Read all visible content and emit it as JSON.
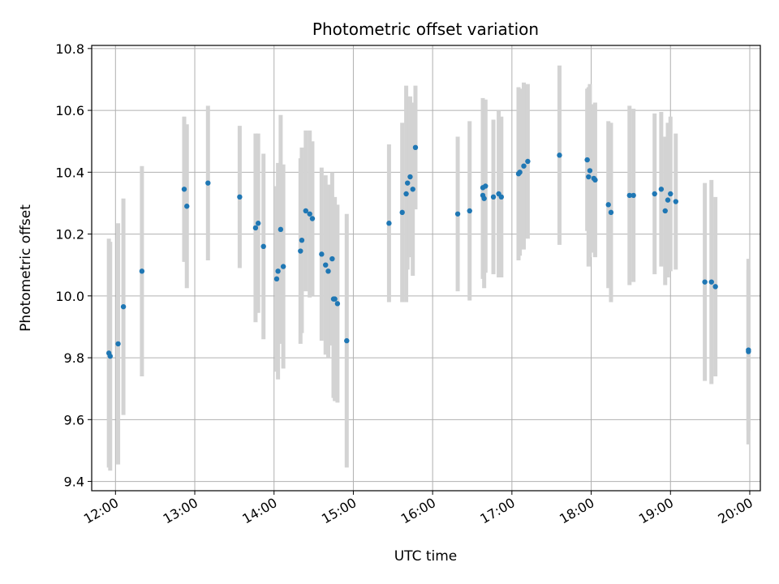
{
  "chart_data": {
    "type": "scatter",
    "title": "Photometric offset variation",
    "xlabel": "UTC time",
    "ylabel": "Photometric offset",
    "xlim": [
      "11:42",
      "20:08"
    ],
    "ylim": [
      9.37,
      10.81
    ],
    "x_ticks": [
      "12:00",
      "13:00",
      "14:00",
      "15:00",
      "16:00",
      "17:00",
      "18:00",
      "19:00",
      "20:00"
    ],
    "y_ticks": [
      9.4,
      9.6,
      9.8,
      10.0,
      10.2,
      10.4,
      10.6,
      10.8
    ],
    "y_tick_labels": [
      "9.4",
      "9.6",
      "9.8",
      "10.0",
      "10.2",
      "10.4",
      "10.6",
      "10.8"
    ],
    "grid": true,
    "colors": {
      "point": "#1f77b4",
      "error_bar": "#d3d3d3",
      "grid": "#b0b0b0"
    },
    "series": [
      {
        "x": [
          "11:55",
          "11:56",
          "12:02",
          "12:06",
          "12:20",
          "12:52",
          "12:54",
          "13:10",
          "13:34",
          "13:46",
          "13:48",
          "13:52",
          "14:02",
          "14:03",
          "14:05",
          "14:07",
          "14:20",
          "14:21",
          "14:24",
          "14:27",
          "14:29",
          "14:36",
          "14:39",
          "14:41",
          "14:44",
          "14:45",
          "14:46",
          "14:48",
          "14:55",
          "15:27",
          "15:37",
          "15:40",
          "15:41",
          "15:43",
          "15:45",
          "15:47",
          "16:19",
          "16:28",
          "16:38",
          "16:38",
          "16:39",
          "16:40",
          "16:46",
          "16:50",
          "16:52",
          "17:05",
          "17:06",
          "17:09",
          "17:12",
          "17:36",
          "17:57",
          "17:58",
          "17:59",
          "18:02",
          "18:03",
          "18:13",
          "18:15",
          "18:29",
          "18:32",
          "18:48",
          "18:53",
          "18:56",
          "18:58",
          "19:00",
          "19:04",
          "19:26",
          "19:31",
          "19:34",
          "19:59",
          "19:59"
        ],
        "y": [
          9.815,
          9.805,
          9.845,
          9.965,
          10.08,
          10.345,
          10.29,
          10.365,
          10.32,
          10.22,
          10.235,
          10.16,
          10.055,
          10.08,
          10.215,
          10.095,
          10.145,
          10.18,
          10.275,
          10.265,
          10.25,
          10.135,
          10.1,
          10.08,
          10.12,
          9.99,
          9.99,
          9.975,
          9.855,
          10.235,
          10.27,
          10.33,
          10.365,
          10.385,
          10.345,
          10.48,
          10.265,
          10.275,
          10.325,
          10.35,
          10.315,
          10.355,
          10.32,
          10.33,
          10.32,
          10.395,
          10.4,
          10.42,
          10.435,
          10.455,
          10.44,
          10.385,
          10.405,
          10.38,
          10.375,
          10.295,
          10.27,
          10.325,
          10.325,
          10.33,
          10.345,
          10.275,
          10.31,
          10.33,
          10.305,
          10.045,
          10.045,
          10.03,
          9.825,
          9.82
        ],
        "error": [
          0.37,
          0.37,
          0.39,
          0.35,
          0.34,
          0.235,
          0.265,
          0.25,
          0.23,
          0.305,
          0.29,
          0.3,
          0.3,
          0.35,
          0.37,
          0.33,
          0.3,
          0.3,
          0.26,
          0.27,
          0.25,
          0.28,
          0.29,
          0.28,
          0.28,
          0.32,
          0.33,
          0.32,
          0.41,
          0.255,
          0.29,
          0.35,
          0.28,
          0.26,
          0.28,
          0.2,
          0.25,
          0.29,
          0.27,
          0.29,
          0.29,
          0.28,
          0.25,
          0.27,
          0.26,
          0.28,
          0.27,
          0.27,
          0.25,
          0.29,
          0.23,
          0.29,
          0.28,
          0.24,
          0.25,
          0.27,
          0.29,
          0.29,
          0.28,
          0.26,
          0.25,
          0.24,
          0.25,
          0.25,
          0.22,
          0.32,
          0.33,
          0.29,
          0.26,
          0.3
        ]
      }
    ]
  }
}
